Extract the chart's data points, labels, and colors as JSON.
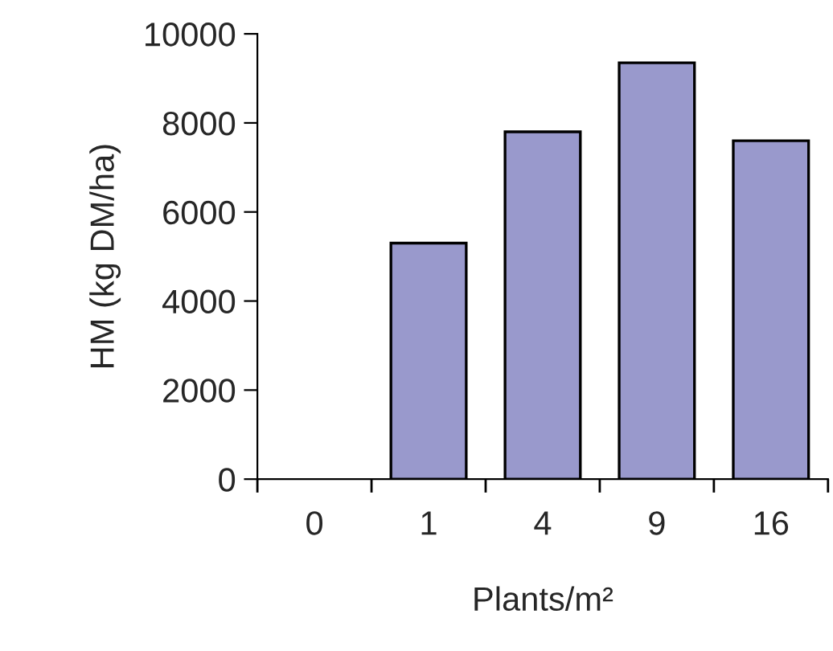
{
  "chart_data": {
    "type": "bar",
    "xlabel": "Plants/m²",
    "ylabel": "HM (kg DM/ha)",
    "categories": [
      "0",
      "1",
      "4",
      "9",
      "16"
    ],
    "values": [
      0,
      5300,
      7800,
      9350,
      7600
    ],
    "color": "#9999cc",
    "ylim": [
      0,
      10000
    ],
    "yticks": [
      0,
      2000,
      4000,
      6000,
      8000,
      10000
    ],
    "grid": false,
    "legend": false
  }
}
